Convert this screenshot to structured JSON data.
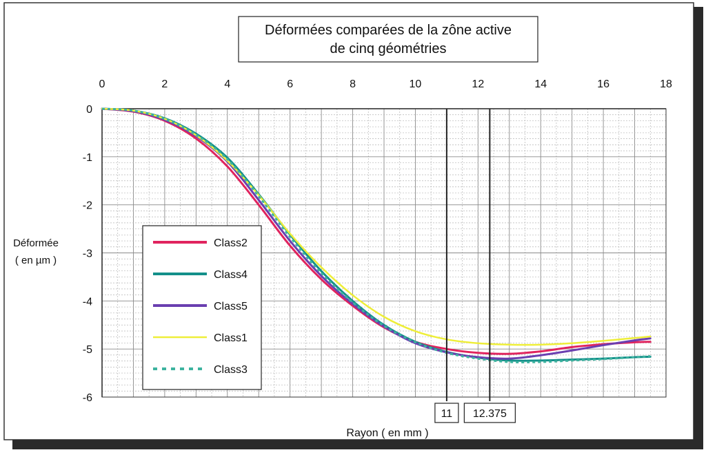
{
  "chart_data": {
    "type": "line",
    "title_lines": [
      "Déformées comparées de la zône active",
      "de cinq géométries"
    ],
    "xlabel": "Rayon ( en mm )",
    "ylabel_lines": [
      "Déformée",
      "( en µm )"
    ],
    "xlim": [
      0,
      18
    ],
    "ylim": [
      -6,
      0
    ],
    "x_ticks": [
      0,
      2,
      4,
      6,
      8,
      10,
      12,
      14,
      16,
      18
    ],
    "y_ticks": [
      0,
      -1,
      -2,
      -3,
      -4,
      -5,
      -6
    ],
    "x_axis_position": "top",
    "grid": true,
    "legend_position": "left",
    "reference_lines": [
      {
        "x": 11,
        "label": "11"
      },
      {
        "x": 12.375,
        "label": "12.375"
      }
    ],
    "series": [
      {
        "name": "Class2",
        "color": "#e0245e",
        "dash": "solid",
        "points": [
          [
            0,
            0
          ],
          [
            1,
            -0.06
          ],
          [
            2,
            -0.25
          ],
          [
            3,
            -0.62
          ],
          [
            4,
            -1.2
          ],
          [
            5,
            -2.0
          ],
          [
            6,
            -2.85
          ],
          [
            7,
            -3.55
          ],
          [
            8,
            -4.1
          ],
          [
            9,
            -4.55
          ],
          [
            10,
            -4.85
          ],
          [
            11,
            -5.0
          ],
          [
            12,
            -5.08
          ],
          [
            13,
            -5.1
          ],
          [
            14,
            -5.05
          ],
          [
            15,
            -4.96
          ],
          [
            16,
            -4.9
          ],
          [
            17,
            -4.86
          ],
          [
            17.5,
            -4.85
          ]
        ]
      },
      {
        "name": "Class4",
        "color": "#14908a",
        "dash": "solid",
        "points": [
          [
            0,
            0
          ],
          [
            1,
            -0.04
          ],
          [
            2,
            -0.2
          ],
          [
            3,
            -0.52
          ],
          [
            4,
            -1.02
          ],
          [
            5,
            -1.78
          ],
          [
            6,
            -2.62
          ],
          [
            7,
            -3.38
          ],
          [
            8,
            -4.0
          ],
          [
            9,
            -4.5
          ],
          [
            10,
            -4.85
          ],
          [
            11,
            -5.06
          ],
          [
            12,
            -5.18
          ],
          [
            13,
            -5.24
          ],
          [
            14,
            -5.24
          ],
          [
            15,
            -5.22
          ],
          [
            16,
            -5.2
          ],
          [
            17,
            -5.17
          ],
          [
            17.5,
            -5.16
          ]
        ]
      },
      {
        "name": "Class5",
        "color": "#6a3fb0",
        "dash": "solid",
        "points": [
          [
            0,
            0
          ],
          [
            1,
            -0.05
          ],
          [
            2,
            -0.23
          ],
          [
            3,
            -0.57
          ],
          [
            4,
            -1.1
          ],
          [
            5,
            -1.9
          ],
          [
            6,
            -2.75
          ],
          [
            7,
            -3.48
          ],
          [
            8,
            -4.06
          ],
          [
            9,
            -4.53
          ],
          [
            10,
            -4.88
          ],
          [
            11,
            -5.07
          ],
          [
            12,
            -5.17
          ],
          [
            13,
            -5.2
          ],
          [
            14,
            -5.13
          ],
          [
            15,
            -5.03
          ],
          [
            16,
            -4.92
          ],
          [
            17,
            -4.82
          ],
          [
            17.5,
            -4.78
          ]
        ]
      },
      {
        "name": "Class1",
        "color": "#eeee38",
        "dash": "solid",
        "points": [
          [
            0,
            0
          ],
          [
            1,
            -0.04
          ],
          [
            2,
            -0.21
          ],
          [
            3,
            -0.55
          ],
          [
            4,
            -1.08
          ],
          [
            5,
            -1.8
          ],
          [
            6,
            -2.6
          ],
          [
            7,
            -3.3
          ],
          [
            8,
            -3.88
          ],
          [
            9,
            -4.33
          ],
          [
            10,
            -4.63
          ],
          [
            11,
            -4.8
          ],
          [
            12,
            -4.88
          ],
          [
            13,
            -4.91
          ],
          [
            14,
            -4.91
          ],
          [
            15,
            -4.88
          ],
          [
            16,
            -4.83
          ],
          [
            17,
            -4.77
          ],
          [
            17.5,
            -4.74
          ]
        ]
      },
      {
        "name": "Class3",
        "color": "#3db39f",
        "dash": "dotted",
        "points": [
          [
            0,
            0
          ],
          [
            1,
            -0.04
          ],
          [
            2,
            -0.21
          ],
          [
            3,
            -0.54
          ],
          [
            4,
            -1.05
          ],
          [
            5,
            -1.82
          ],
          [
            6,
            -2.67
          ],
          [
            7,
            -3.42
          ],
          [
            8,
            -4.03
          ],
          [
            9,
            -4.52
          ],
          [
            10,
            -4.86
          ],
          [
            11,
            -5.08
          ],
          [
            12,
            -5.2
          ],
          [
            13,
            -5.27
          ],
          [
            14,
            -5.27
          ],
          [
            15,
            -5.24
          ],
          [
            16,
            -5.21
          ],
          [
            17,
            -5.17
          ],
          [
            17.5,
            -5.15
          ]
        ]
      }
    ]
  }
}
